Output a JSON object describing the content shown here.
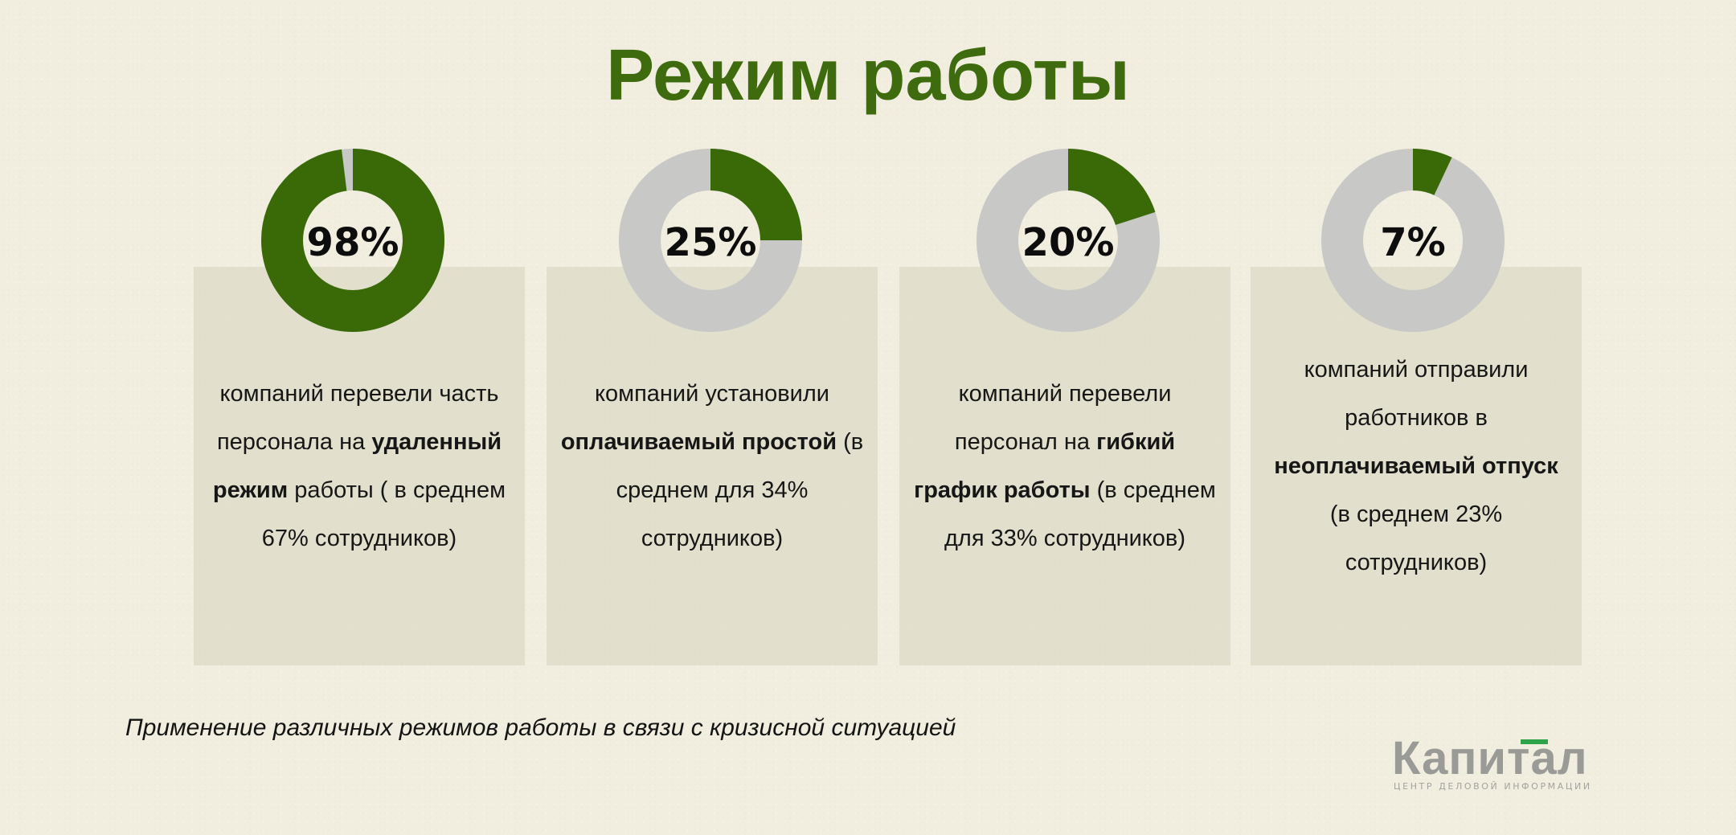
{
  "title": "Режим работы",
  "colors": {
    "accent": "#3f6b0f",
    "donut_fill": "#3a6a08",
    "donut_remainder": "#c8c8c6",
    "card_bg": "#d6d4be"
  },
  "chart_data": {
    "type": "pie",
    "variant": "donut",
    "title": "Режим работы",
    "items": [
      {
        "value": 98,
        "label": "98%",
        "text": [
          {
            "t": "компаний перевели часть персонала на "
          },
          {
            "t": "удаленный режим",
            "bold": true
          },
          {
            "t": " работы ( в среднем 67% сотрудников)"
          }
        ]
      },
      {
        "value": 25,
        "label": "25%",
        "text": [
          {
            "t": "компаний установили "
          },
          {
            "t": "оплачиваемый простой",
            "bold": true
          },
          {
            "t": " (в среднем для 34% сотрудников)"
          }
        ]
      },
      {
        "value": 20,
        "label": "20%",
        "text": [
          {
            "t": "компаний перевели персонал на "
          },
          {
            "t": "гибкий график работы",
            "bold": true
          },
          {
            "t": " (в среднем для 33% сотрудников)"
          }
        ]
      },
      {
        "value": 7,
        "label": "7%",
        "text": [
          {
            "t": "компаний отправили работников в "
          },
          {
            "t": "неоплачиваемый отпуск",
            "bold": true
          },
          {
            "t": " (в среднем 23% сотрудников)"
          }
        ]
      }
    ]
  },
  "caption": "Применение различных режимов работы в связи с кризисной ситуацией",
  "logo": {
    "word": "Капитал",
    "tagline": "ЦЕНТР ДЕЛОВОЙ ИНФОРМАЦИИ"
  }
}
